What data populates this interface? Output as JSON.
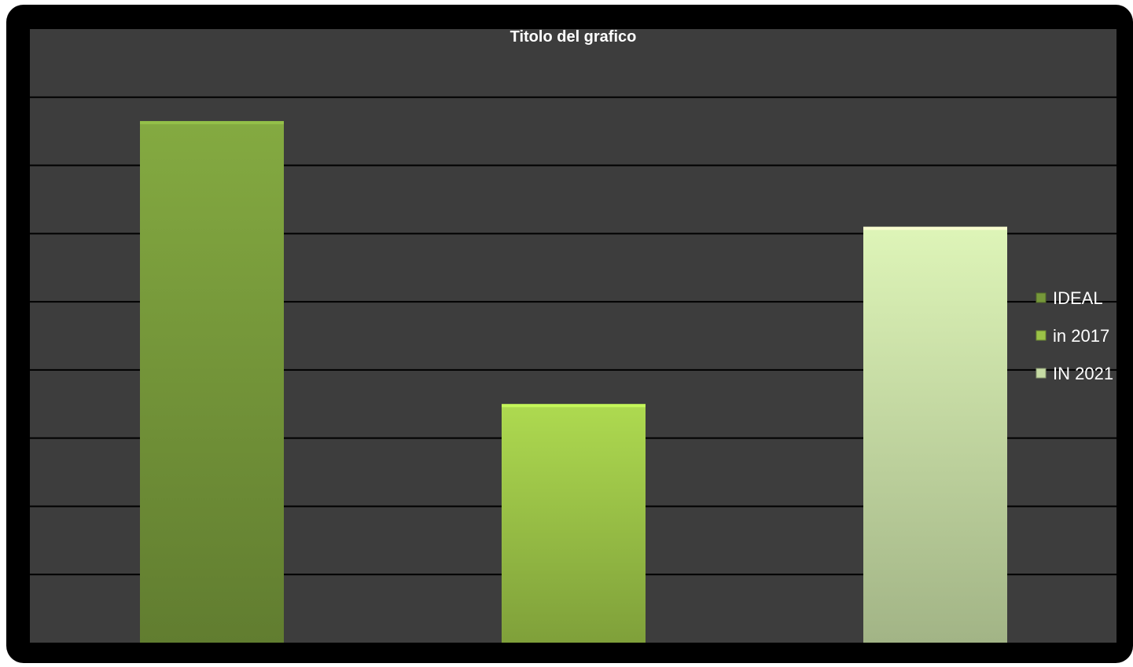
{
  "chart_data": {
    "type": "bar",
    "title": "Titolo del grafico",
    "xlabel": "",
    "ylabel": "",
    "grid": true,
    "ylim": [
      0,
      9
    ],
    "legend_position": "right",
    "series": [
      {
        "name": "IDEAL",
        "values": [
          7.65
        ],
        "color": "#76983a"
      },
      {
        "name": "in 2017",
        "values": [
          3.5
        ],
        "color": "#9bc347"
      },
      {
        "name": "IN 2021",
        "values": [
          6.1
        ],
        "color": "#c6dba4"
      }
    ],
    "colors": {
      "frame": "#000000",
      "plot_background": "#3d3d3d",
      "gridline": "#000000",
      "text": "#ffffff"
    }
  }
}
